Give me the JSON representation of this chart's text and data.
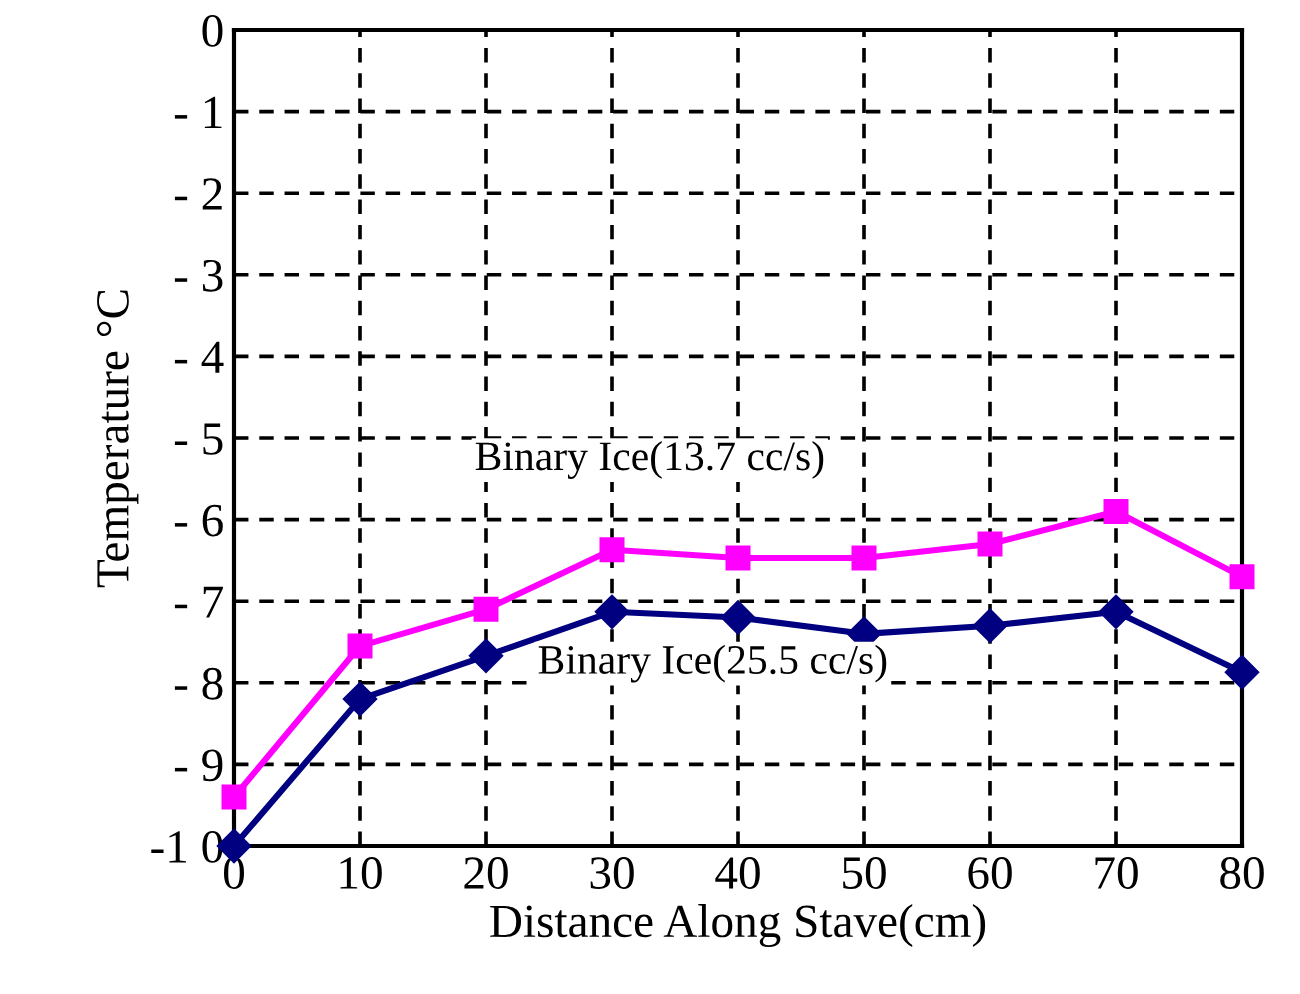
{
  "chart_data": {
    "type": "line",
    "xlabel": "Distance Along Stave(cm)",
    "ylabel": "Temperature °C",
    "x": [
      0,
      10,
      20,
      30,
      40,
      50,
      60,
      70,
      80
    ],
    "series": [
      {
        "name": "Binary Ice(13.7 cc/s)",
        "color": "#ff00ff",
        "marker": "square",
        "values": [
          -9.4,
          -7.55,
          -7.1,
          -6.37,
          -6.47,
          -6.47,
          -6.3,
          -5.9,
          -6.7
        ]
      },
      {
        "name": "Binary Ice(25.5 cc/s)",
        "color": "#000080",
        "marker": "diamond",
        "values": [
          -10,
          -8.2,
          -7.67,
          -7.13,
          -7.2,
          -7.4,
          -7.3,
          -7.13,
          -7.87
        ]
      }
    ],
    "xlim": [
      0,
      80
    ],
    "xticks": [
      0,
      10,
      20,
      30,
      40,
      50,
      60,
      70,
      80
    ],
    "ylim": [
      -10,
      0
    ],
    "yticks": [
      0,
      {
        "value": -1,
        "label": "- 1"
      },
      {
        "value": -2,
        "label": "- 2"
      },
      {
        "value": -3,
        "label": "- 3"
      },
      {
        "value": -4,
        "label": "- 4"
      },
      {
        "value": -5,
        "label": "- 5"
      },
      {
        "value": -6,
        "label": "- 6"
      },
      {
        "value": -7,
        "label": "- 7"
      },
      {
        "value": -8,
        "label": "- 8"
      },
      {
        "value": -9,
        "label": "- 9"
      },
      {
        "value": -10,
        "label": "-1 0"
      }
    ],
    "grid": true,
    "line_style": "solid",
    "legend": false
  }
}
